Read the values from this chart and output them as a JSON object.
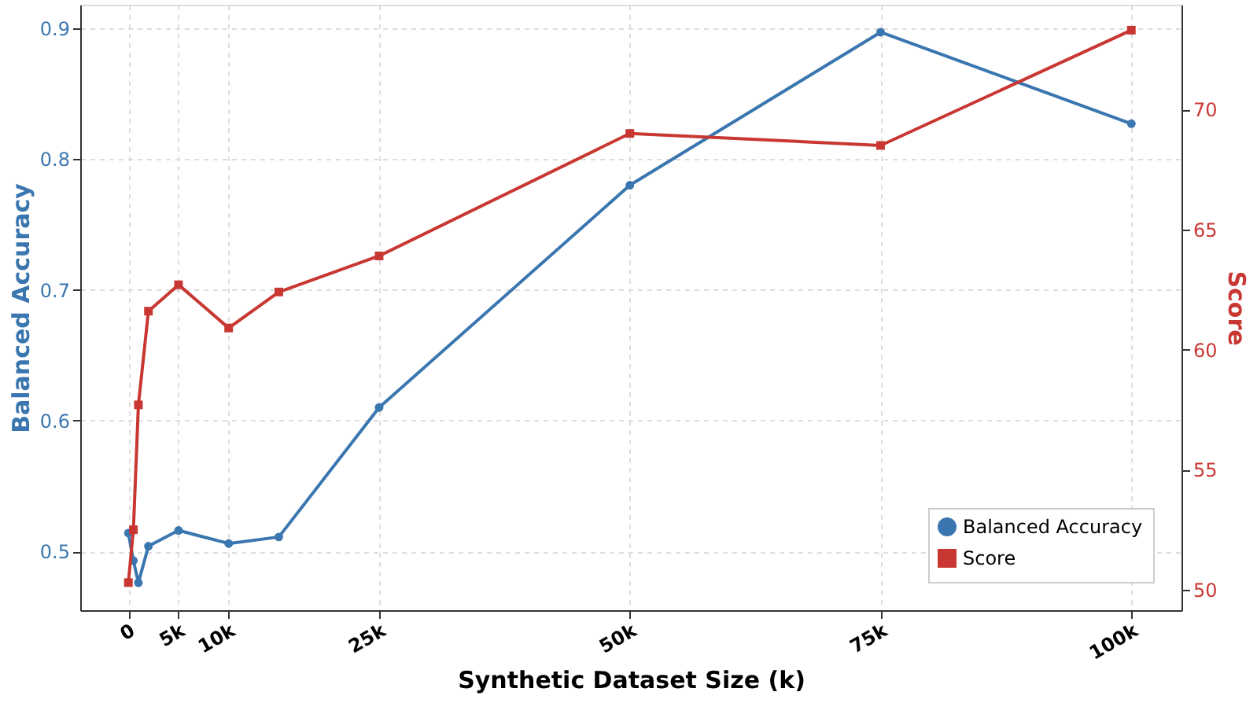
{
  "chart_data": {
    "type": "line",
    "xlabel": "Synthetic Dataset Size (k)",
    "ylabel": "Balanced Accuracy",
    "y2label": "Score",
    "x": [
      0,
      500,
      1000,
      2000,
      5000,
      10000,
      15000,
      25000,
      50000,
      75000,
      100000
    ],
    "series": [
      {
        "name": "Balanced Accuracy",
        "color": "#3a76af",
        "marker": "circle",
        "values": [
          0.514,
          0.493,
          0.476,
          0.504,
          0.516,
          0.506,
          0.511,
          0.61,
          0.78,
          0.897,
          0.827
        ]
      },
      {
        "name": "Score",
        "color": "#c83732",
        "marker": "square",
        "axis": "y2",
        "values": [
          50.3,
          52.5,
          57.7,
          61.6,
          62.7,
          60.9,
          62.4,
          63.9,
          69.0,
          68.5,
          73.3
        ]
      }
    ],
    "xlim": [
      -4800,
      105000
    ],
    "xticks": [
      0,
      {
        "value": 5000,
        "label": "5k"
      },
      {
        "value": 10000,
        "label": "10k"
      },
      {
        "value": 25000,
        "label": "25k"
      },
      {
        "value": 50000,
        "label": "50k"
      },
      {
        "value": 75000,
        "label": "75k"
      },
      {
        "value": 100000,
        "label": "100k"
      }
    ],
    "ylim": [
      0.455,
      0.918
    ],
    "yticks": [
      0.5,
      0.6,
      0.7,
      0.8,
      0.9
    ],
    "y2lim": [
      49.15,
      74.36
    ],
    "y2ticks": [
      50,
      55,
      60,
      65,
      70
    ],
    "grid": true,
    "legend": "bottom right",
    "line_style": "solid"
  }
}
